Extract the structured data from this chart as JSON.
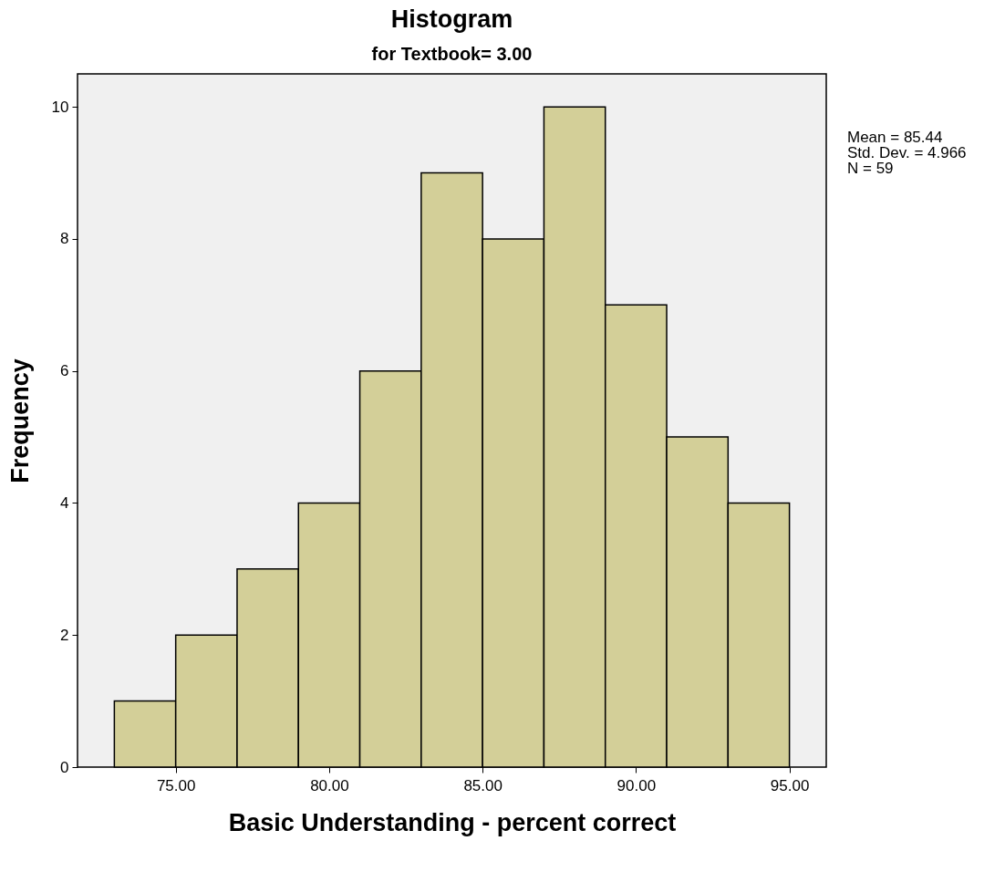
{
  "chart_data": {
    "type": "histogram",
    "title": "Histogram",
    "subtitle": "for Textbook= 3.00",
    "xlabel": "Basic Understanding - percent correct",
    "ylabel": "Frequency",
    "bins": [
      73,
      75,
      77,
      79,
      81,
      83,
      85,
      87,
      89,
      91,
      93,
      95
    ],
    "values": [
      1,
      2,
      3,
      4,
      6,
      9,
      8,
      10,
      7,
      5,
      4
    ],
    "color": "#d3cf98",
    "xlim": [
      71.8,
      96.2
    ],
    "xticks": [
      {
        "value": 75,
        "label": "75.00"
      },
      {
        "value": 80,
        "label": "80.00"
      },
      {
        "value": 85,
        "label": "85.00"
      },
      {
        "value": 90,
        "label": "90.00"
      },
      {
        "value": 95,
        "label": "95.00"
      }
    ],
    "ylim": [
      0,
      10.5
    ],
    "yticks": [
      0,
      2,
      4,
      6,
      8,
      10
    ],
    "annotations": [
      "Mean = 85.44",
      "Std. Dev. = 4.966",
      "N = 59"
    ]
  }
}
